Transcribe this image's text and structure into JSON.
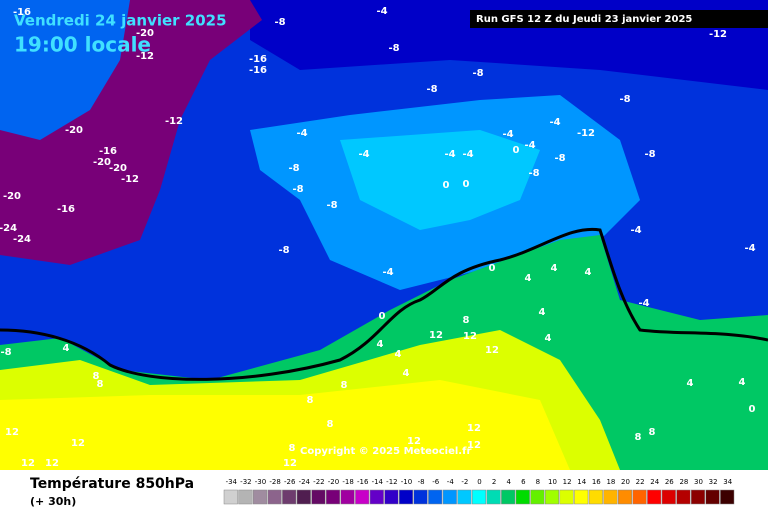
{
  "header": {
    "date": "Vendredi 24 janvier 2025",
    "time": "19:00 locale",
    "run": "Run GFS 12 Z du Jeudi 23 janvier 2025"
  },
  "footer": {
    "title": "Température 850hPa",
    "lead": "(+ 30h)",
    "copyright": "Copyright © 2025 Meteociel.fr"
  },
  "legend": {
    "values": [
      -34,
      -32,
      -30,
      -28,
      -26,
      -24,
      -22,
      -20,
      -18,
      -16,
      -14,
      -12,
      -10,
      -8,
      -6,
      -4,
      -2,
      0,
      2,
      4,
      6,
      8,
      10,
      12,
      14,
      16,
      18,
      20,
      22,
      24,
      26,
      28,
      30,
      32,
      34
    ],
    "colors": [
      "#d0d0d0",
      "#b4b4b4",
      "#a08ca0",
      "#8c648c",
      "#6e3c6e",
      "#501e50",
      "#640a64",
      "#780078",
      "#a000a0",
      "#c800c8",
      "#6400c8",
      "#3200c8",
      "#0000c8",
      "#0032dc",
      "#0064f0",
      "#0096ff",
      "#00c8ff",
      "#00ffff",
      "#00dcb4",
      "#00c864",
      "#00dc00",
      "#64f000",
      "#a0ff00",
      "#dcff00",
      "#ffff00",
      "#ffdc00",
      "#ffb400",
      "#ff8c00",
      "#ff6400",
      "#ff0000",
      "#dc0000",
      "#b40000",
      "#8c0000",
      "#640000",
      "#3c0000"
    ]
  },
  "map_labels": [
    -16,
    -8,
    -4,
    -12,
    -20,
    -12,
    -8,
    -16,
    -16,
    -8,
    -8,
    -8,
    -12,
    -20,
    -4,
    -4,
    -4,
    -12,
    -16,
    -20,
    -20,
    -12,
    -4,
    -4,
    -4,
    0,
    -4,
    -8,
    -8,
    -8,
    -8,
    -8,
    -8,
    0,
    0,
    -20,
    -16,
    -24,
    -24,
    -8,
    -4,
    0,
    4,
    4,
    4,
    -4,
    -4,
    -4,
    0,
    8,
    12,
    12,
    12,
    4,
    4,
    4,
    4,
    -8,
    4,
    8,
    8,
    4,
    4,
    4,
    0,
    8,
    8,
    8,
    12,
    12,
    12,
    12,
    12,
    8,
    12,
    12,
    12,
    8,
    8
  ]
}
